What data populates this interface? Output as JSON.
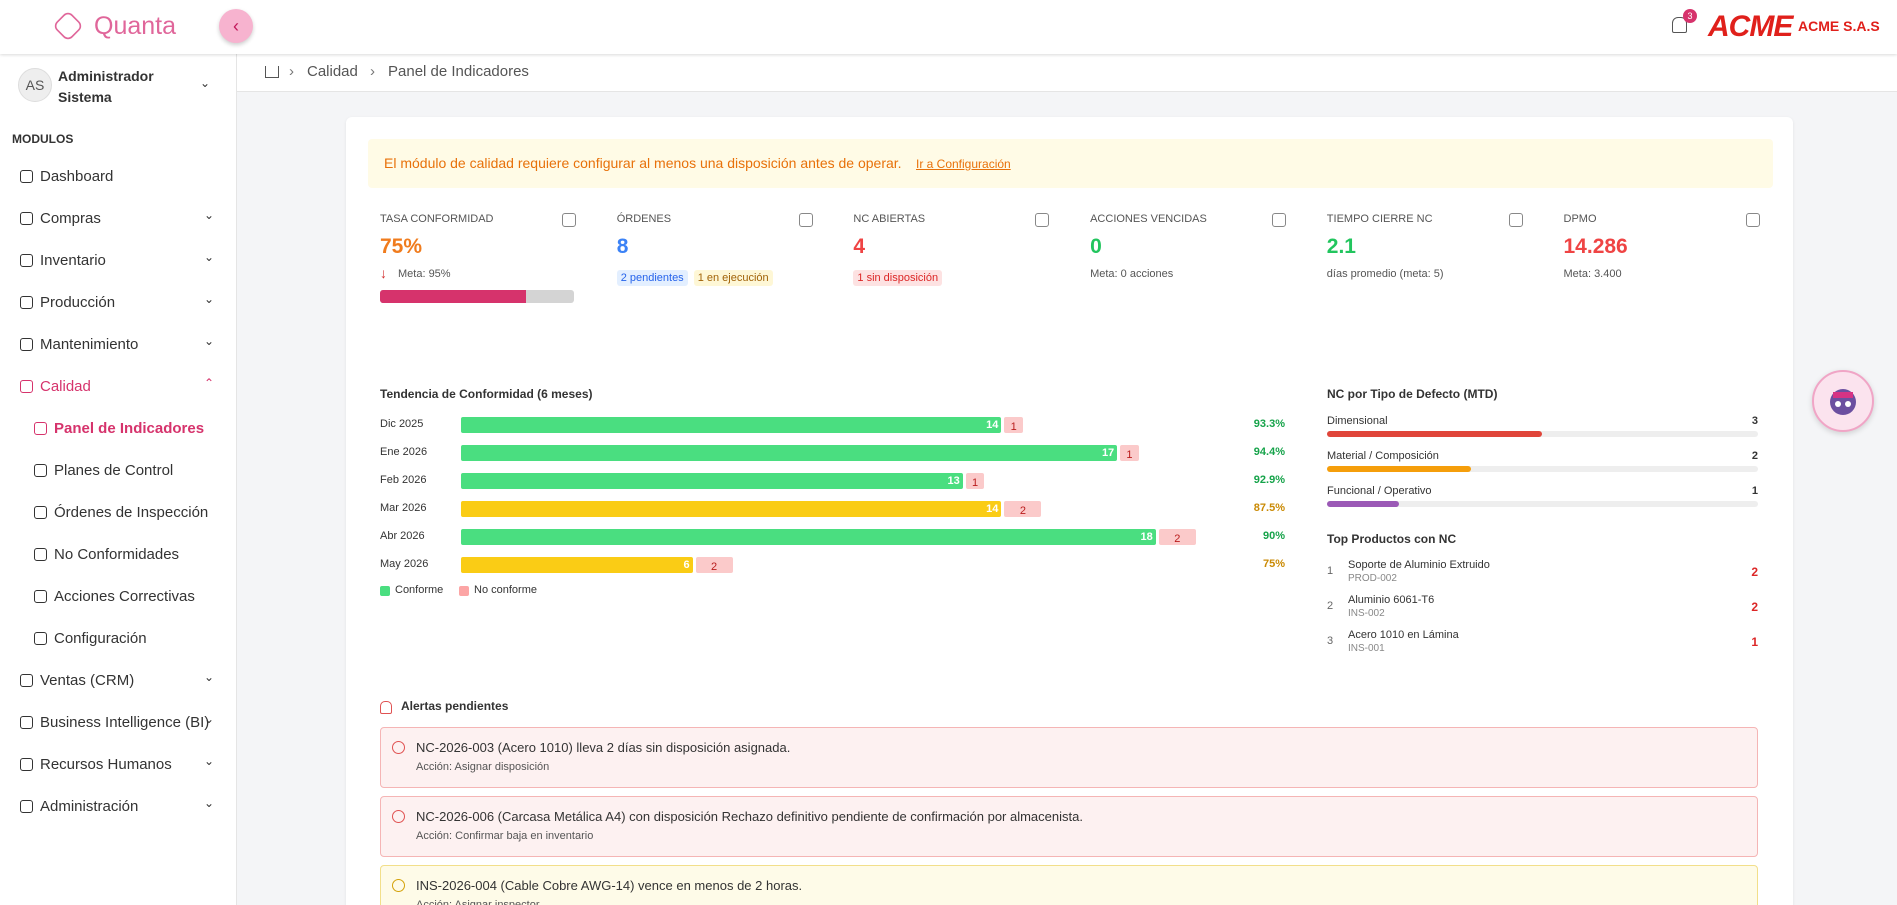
{
  "header": {
    "brand": "Quanta",
    "notification_count": "3",
    "company_logo": "ACME",
    "company_name": "ACME S.A.S"
  },
  "user": {
    "initials": "AS",
    "name": "Administrador Sistema"
  },
  "sidebar": {
    "section_title": "MODULOS",
    "items": [
      {
        "label": "Dashboard"
      },
      {
        "label": "Compras",
        "expandable": true
      },
      {
        "label": "Inventario",
        "expandable": true
      },
      {
        "label": "Producción",
        "expandable": true
      },
      {
        "label": "Mantenimiento",
        "expandable": true
      },
      {
        "label": "Calidad",
        "expandable": true,
        "expanded": true,
        "active": true,
        "children": [
          {
            "label": "Panel de Indicadores",
            "active": true
          },
          {
            "label": "Planes de Control"
          },
          {
            "label": "Órdenes de Inspección"
          },
          {
            "label": "No Conformidades"
          },
          {
            "label": "Acciones Correctivas"
          },
          {
            "label": "Configuración"
          }
        ]
      },
      {
        "label": "Ventas (CRM)",
        "expandable": true
      },
      {
        "label": "Business Intelligence (BI)",
        "expandable": true
      },
      {
        "label": "Recursos Humanos",
        "expandable": true
      },
      {
        "label": "Administración",
        "expandable": true
      }
    ]
  },
  "breadcrumb": [
    "Calidad",
    "Panel de Indicadores"
  ],
  "banner": {
    "message": "El módulo de calidad requiere configurar al menos una disposición antes de operar.",
    "link": "Ir a Configuración"
  },
  "kpis": [
    {
      "label": "TASA CONFORMIDAD",
      "value": "75%",
      "color": "#f07c1e",
      "note": "Meta: 95%",
      "trend": "down",
      "progress": true
    },
    {
      "label": "ÓRDENES",
      "value": "8",
      "color": "#3b82f6",
      "badges": [
        {
          "text": "2 pendientes",
          "style": "blue"
        },
        {
          "text": "1 en ejecución",
          "style": "yellow"
        }
      ]
    },
    {
      "label": "NC ABIERTAS",
      "value": "4",
      "color": "#ef4444",
      "badges": [
        {
          "text": "1 sin disposición",
          "style": "red"
        }
      ]
    },
    {
      "label": "ACCIONES VENCIDAS",
      "value": "0",
      "color": "#22c55e",
      "note": "Meta: 0 acciones"
    },
    {
      "label": "TIEMPO CIERRE NC",
      "value": "2.1",
      "color": "#22c55e",
      "note": "días promedio (meta: 5)"
    },
    {
      "label": "DPMO",
      "value": "14.286",
      "color": "#ef4444",
      "note": "Meta: 3.400"
    }
  ],
  "trend_chart": {
    "type": "bar",
    "title": "Tendencia de Conformidad (6 meses)",
    "categories": [
      "Dic 2025",
      "Ene 2026",
      "Feb 2026",
      "Mar 2026",
      "Abr 2026",
      "May 2026"
    ],
    "series": [
      {
        "name": "Conforme",
        "color": "#4ade80",
        "values": [
          14,
          17,
          13,
          14,
          18,
          6
        ],
        "colors": [
          "#4ade80",
          "#4ade80",
          "#4ade80",
          "#facc15",
          "#4ade80",
          "#facc15"
        ]
      },
      {
        "name": "No conforme",
        "color": "#fca5a5",
        "values": [
          1,
          1,
          1,
          2,
          2,
          2
        ]
      }
    ],
    "rates": [
      "93.3%",
      "94.4%",
      "92.9%",
      "87.5%",
      "90%",
      "75%"
    ],
    "rate_colors": [
      "#16a34a",
      "#16a34a",
      "#16a34a",
      "#ca8a04",
      "#16a34a",
      "#ca8a04"
    ]
  },
  "defects": {
    "title": "NC por Tipo de Defecto (MTD)",
    "items": [
      {
        "label": "Dimensional",
        "value": 3,
        "color": "#e0453a"
      },
      {
        "label": "Material / Composición",
        "value": 2,
        "color": "#f59e0b"
      },
      {
        "label": "Funcional / Operativo",
        "value": 1,
        "color": "#9b59b6"
      }
    ]
  },
  "top_products": {
    "title": "Top Productos con NC",
    "items": [
      {
        "rank": 1,
        "name": "Soporte de Aluminio Extruido",
        "code": "PROD-002",
        "count": 2
      },
      {
        "rank": 2,
        "name": "Aluminio 6061-T6",
        "code": "INS-002",
        "count": 2
      },
      {
        "rank": 3,
        "name": "Acero 1010 en Lámina",
        "code": "INS-001",
        "count": 1
      }
    ]
  },
  "alerts": {
    "title": "Alertas pendientes",
    "items": [
      {
        "level": "error",
        "message": "NC-2026-003 (Acero 1010) lleva 2 días sin disposición asignada.",
        "action": "Acción: Asignar disposición"
      },
      {
        "level": "error",
        "message": "NC-2026-006 (Carcasa Metálica A4) con disposición Rechazo definitivo pendiente de confirmación por almacenista.",
        "action": "Acción: Confirmar baja en inventario"
      },
      {
        "level": "warning",
        "message": "INS-2026-004 (Cable Cobre AWG-14) vence en menos de 2 horas.",
        "action": "Acción: Asignar inspector"
      }
    ]
  }
}
